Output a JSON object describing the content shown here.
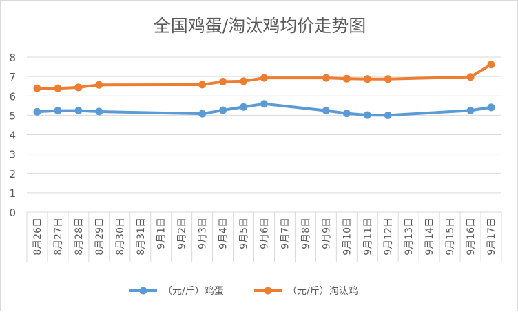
{
  "chart_data": {
    "type": "line",
    "title": "全国鸡蛋/淘汰鸡均价走势图",
    "xlabel": "",
    "ylabel": "",
    "ylim": [
      0,
      8
    ],
    "yticks": [
      0,
      1,
      2,
      3,
      4,
      5,
      6,
      7,
      8
    ],
    "grid": true,
    "legend_position": "bottom",
    "categories": [
      "8月26日",
      "8月27日",
      "8月28日",
      "8月29日",
      "8月30日",
      "8月31日",
      "9月1日",
      "9月2日",
      "9月3日",
      "9月4日",
      "9月5日",
      "9月6日",
      "9月7日",
      "9月8日",
      "9月9日",
      "9月10日",
      "9月11日",
      "9月12日",
      "9月13日",
      "9月14日",
      "9月15日",
      "9月16日",
      "9月17日"
    ],
    "series": [
      {
        "name": "（元/斤）鸡蛋",
        "color": "#5b9bd5",
        "values": [
          5.18,
          5.24,
          5.24,
          5.19,
          null,
          null,
          null,
          null,
          5.08,
          5.26,
          5.43,
          5.59,
          null,
          null,
          5.24,
          5.1,
          5.01,
          5.0,
          null,
          null,
          null,
          5.25,
          5.41
        ]
      },
      {
        "name": "（元/斤）淘汰鸡",
        "color": "#ed7d31",
        "values": [
          6.39,
          6.39,
          6.44,
          6.57,
          null,
          null,
          null,
          null,
          6.58,
          6.74,
          6.76,
          6.93,
          null,
          null,
          6.93,
          6.89,
          6.87,
          6.87,
          null,
          null,
          null,
          6.98,
          7.62
        ]
      }
    ]
  },
  "colors": {
    "gridline": "#d9d9d9",
    "axis_text": "#595959",
    "title_text": "#595959"
  }
}
